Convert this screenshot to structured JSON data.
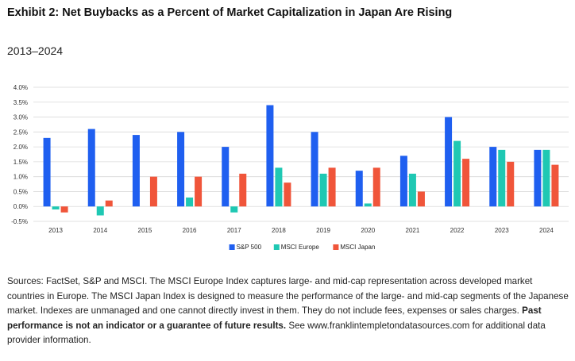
{
  "header": {
    "title": "Exhibit 2: Net Buybacks as a Percent of Market Capitalization in Japan Are Rising",
    "subtitle": "2013–2024"
  },
  "chart_data": {
    "type": "bar",
    "categories": [
      "2013",
      "2014",
      "2015",
      "2016",
      "2017",
      "2018",
      "2019",
      "2020",
      "2021",
      "2022",
      "2023",
      "2024"
    ],
    "series": [
      {
        "name": "S&P 500",
        "color": "#1f5ff0",
        "values": [
          2.3,
          2.6,
          2.4,
          2.5,
          2.0,
          3.4,
          2.5,
          1.2,
          1.7,
          3.0,
          2.0,
          1.9
        ]
      },
      {
        "name": "MSCI Europe",
        "color": "#1fc8b3",
        "values": [
          -0.1,
          -0.3,
          0.0,
          0.3,
          -0.2,
          1.3,
          1.1,
          0.1,
          1.1,
          2.2,
          1.9,
          1.9
        ]
      },
      {
        "name": "MSCI Japan",
        "color": "#f0553a",
        "values": [
          -0.2,
          0.2,
          1.0,
          1.0,
          1.1,
          0.8,
          1.3,
          1.3,
          0.5,
          1.6,
          1.5,
          1.4
        ]
      }
    ],
    "yticks": [
      "4.0%",
      "3.5%",
      "3.0%",
      "2.5%",
      "2.0%",
      "1.5%",
      "1.0%",
      "0.5%",
      "0.0%",
      "-0.5%"
    ],
    "ylim": [
      -0.5,
      4.0
    ],
    "ystep": 0.5,
    "grid": true,
    "legend_position": "bottom-center"
  },
  "footnote": {
    "sources": "Sources: FactSet, S&P and MSCI. The MSCI Europe Index captures large- and mid-cap representation across developed market countries in Europe. The MSCI Japan Index is designed to measure the performance of the large- and mid-cap segments of the Japanese market.  Indexes are unmanaged and one cannot directly invest in them. They do not include fees, expenses or sales charges. ",
    "disclaimer_bold": "Past performance is not an indicator or a guarantee of future results.",
    "more_info": " See www.franklintempletondatasources.com for additional data provider information."
  }
}
